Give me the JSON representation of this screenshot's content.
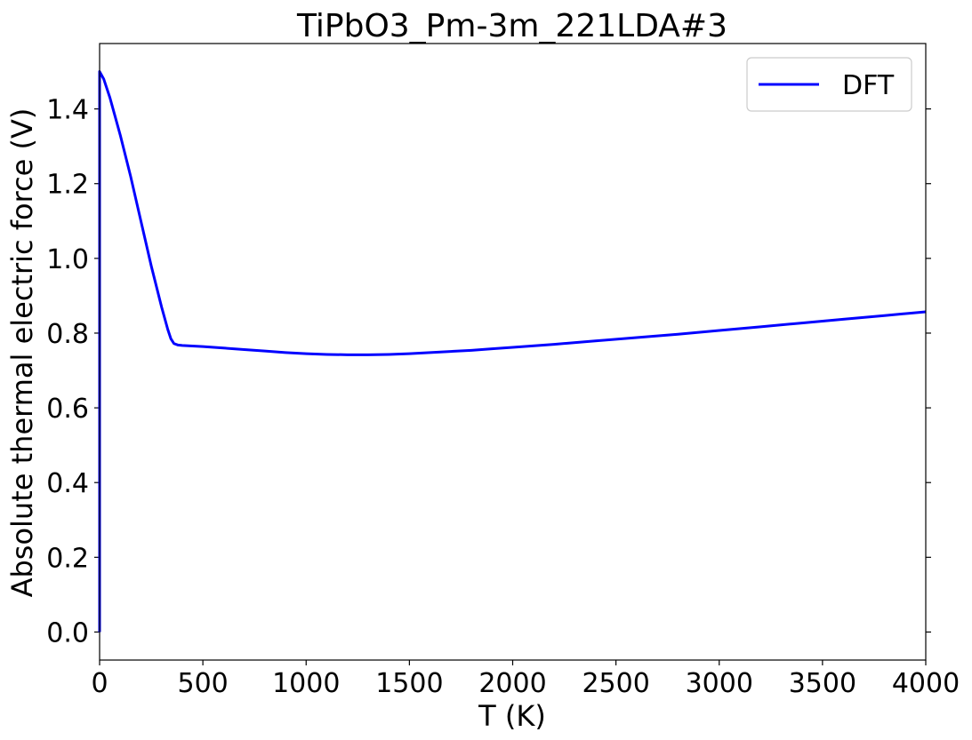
{
  "chart_data": {
    "type": "line",
    "title": "TiPbO3_Pm-3m_221LDA#3",
    "xlabel": "T (K)",
    "ylabel": "Absolute thermal electric force (V)",
    "xlim": [
      0,
      4000
    ],
    "ylim": [
      -0.075,
      1.575
    ],
    "xticks": [
      0,
      500,
      1000,
      1500,
      2000,
      2500,
      3000,
      3500,
      4000
    ],
    "xtick_labels": [
      "0",
      "500",
      "1000",
      "1500",
      "2000",
      "2500",
      "3000",
      "3500",
      "4000"
    ],
    "yticks": [
      0.0,
      0.2,
      0.4,
      0.6,
      0.8,
      1.0,
      1.2,
      1.4
    ],
    "ytick_labels": [
      "0.0",
      "0.2",
      "0.4",
      "0.6",
      "0.8",
      "1.0",
      "1.2",
      "1.4"
    ],
    "grid": false,
    "legend_position": "top-right",
    "series": [
      {
        "name": "DFT",
        "color": "#0000ff",
        "x": [
          0,
          0,
          20,
          50,
          100,
          150,
          200,
          250,
          300,
          330,
          345,
          360,
          380,
          400,
          500,
          600,
          700,
          800,
          900,
          1000,
          1100,
          1200,
          1300,
          1400,
          1500,
          1600,
          1700,
          1800,
          1900,
          2000,
          2200,
          2400,
          2600,
          2800,
          3000,
          3200,
          3400,
          3600,
          3800,
          4000
        ],
        "y": [
          0.0,
          1.5,
          1.48,
          1.43,
          1.33,
          1.22,
          1.1,
          0.98,
          0.87,
          0.81,
          0.785,
          0.772,
          0.768,
          0.767,
          0.764,
          0.76,
          0.756,
          0.752,
          0.748,
          0.745,
          0.743,
          0.742,
          0.742,
          0.743,
          0.745,
          0.748,
          0.751,
          0.754,
          0.758,
          0.762,
          0.77,
          0.779,
          0.788,
          0.797,
          0.807,
          0.817,
          0.827,
          0.837,
          0.847,
          0.857
        ]
      }
    ]
  }
}
